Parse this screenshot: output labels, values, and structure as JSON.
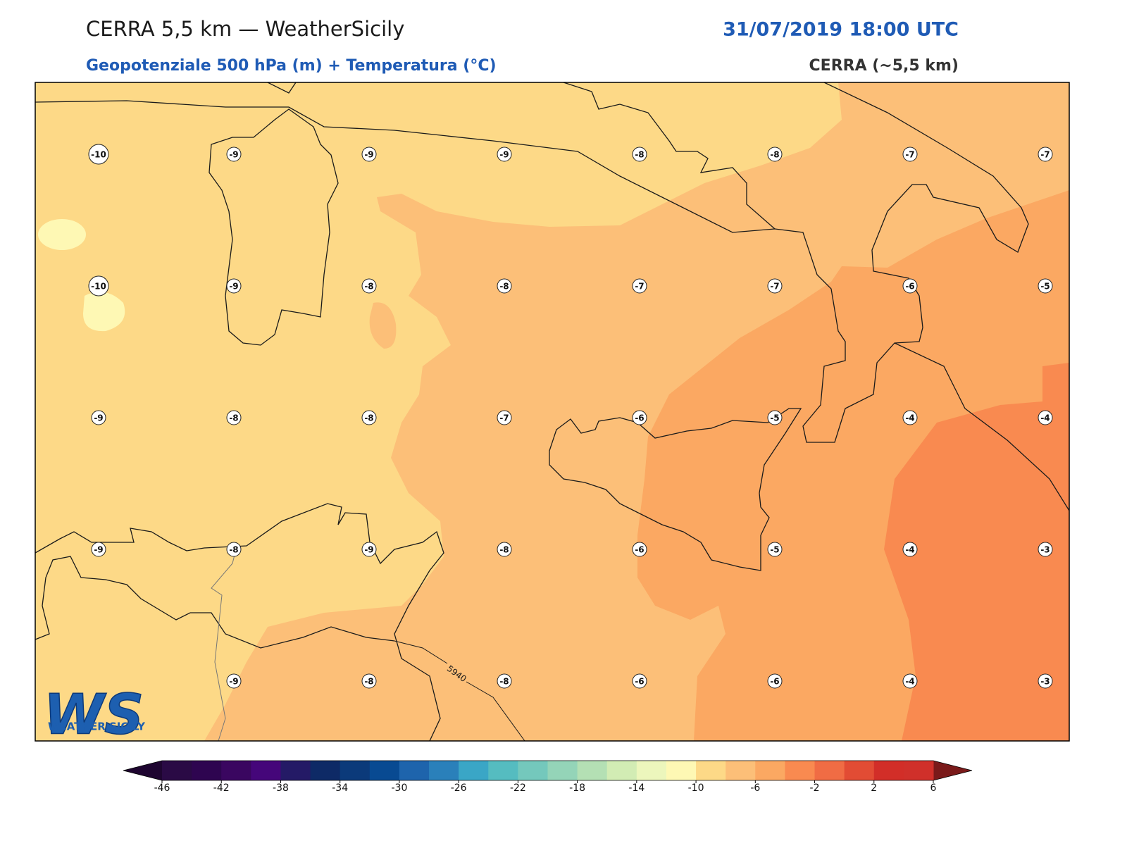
{
  "header": {
    "title": "CERRA 5,5 km — WeatherSicily",
    "datetime": "31/07/2019 18:00 UTC",
    "subtitle": "Geopotenziale 500 hPa (m) + Temperatura (°C)",
    "model": "CERRA (~5,5 km)"
  },
  "map": {
    "station_values": [
      [
        -10,
        -9,
        -9,
        -9,
        -8,
        -8,
        -7,
        -7
      ],
      [
        -10,
        -9,
        -8,
        -8,
        -7,
        -7,
        -6,
        -5
      ],
      [
        -9,
        -8,
        -8,
        -7,
        -6,
        -5,
        -4,
        -4
      ],
      [
        -9,
        -8,
        -9,
        -8,
        -6,
        -5,
        -4,
        -3
      ],
      [
        null,
        -9,
        -8,
        -8,
        -6,
        -6,
        -4,
        -3
      ]
    ],
    "contour_label": "5940"
  },
  "logo": {
    "mark": "WS",
    "text": "WEATHER SICILY"
  },
  "colorbar": {
    "ticks": [
      -46,
      -42,
      -38,
      -34,
      -30,
      -26,
      -22,
      -18,
      -14,
      -10,
      -6,
      -2,
      2,
      6
    ],
    "colors": [
      "#2a0a45",
      "#2e0550",
      "#3a0660",
      "#45067a",
      "#241a66",
      "#0e2a66",
      "#0b3a7a",
      "#084a92",
      "#1e64ac",
      "#2a80ba",
      "#3aa6c6",
      "#55bcc0",
      "#74c8bc",
      "#94d4b8",
      "#b4e0b4",
      "#d2ecb4",
      "#ecf6bc",
      "#fef8b4",
      "#fdd987",
      "#fcbf78",
      "#fba862",
      "#f98a50",
      "#f06c44",
      "#e24c34",
      "#d22e28",
      "#d0302a"
    ],
    "extend_colors": [
      "#1e0530",
      "#7a1a1a"
    ]
  }
}
